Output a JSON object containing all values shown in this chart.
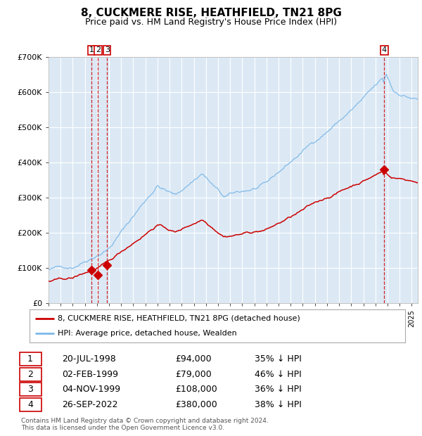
{
  "title": "8, CUCKMERE RISE, HEATHFIELD, TN21 8PG",
  "subtitle": "Price paid vs. HM Land Registry's House Price Index (HPI)",
  "title_fontsize": 11,
  "subtitle_fontsize": 9,
  "plot_bg_color": "#dce9f5",
  "hpi_color": "#7db8e8",
  "price_color": "#cc0000",
  "ylim": [
    0,
    700000
  ],
  "yticks": [
    0,
    100000,
    200000,
    300000,
    400000,
    500000,
    600000,
    700000
  ],
  "ytick_labels": [
    "£0",
    "£100K",
    "£200K",
    "£300K",
    "£400K",
    "£500K",
    "£600K",
    "£700K"
  ],
  "xlim_start": 1995.0,
  "xlim_end": 2025.5,
  "sale_dates": [
    1998.55,
    1999.09,
    1999.84,
    2022.74
  ],
  "sale_prices": [
    94000,
    79000,
    108000,
    380000
  ],
  "sale_labels": [
    "1",
    "2",
    "3",
    "4"
  ],
  "vline_color": "#cc0000",
  "marker_color": "#cc0000",
  "legend_label_red": "8, CUCKMERE RISE, HEATHFIELD, TN21 8PG (detached house)",
  "legend_label_blue": "HPI: Average price, detached house, Wealden",
  "table_data": [
    [
      "1",
      "20-JUL-1998",
      "£94,000",
      "35% ↓ HPI"
    ],
    [
      "2",
      "02-FEB-1999",
      "£79,000",
      "46% ↓ HPI"
    ],
    [
      "3",
      "04-NOV-1999",
      "£108,000",
      "36% ↓ HPI"
    ],
    [
      "4",
      "26-SEP-2022",
      "£380,000",
      "38% ↓ HPI"
    ]
  ],
  "footer": "Contains HM Land Registry data © Crown copyright and database right 2024.\nThis data is licensed under the Open Government Licence v3.0."
}
